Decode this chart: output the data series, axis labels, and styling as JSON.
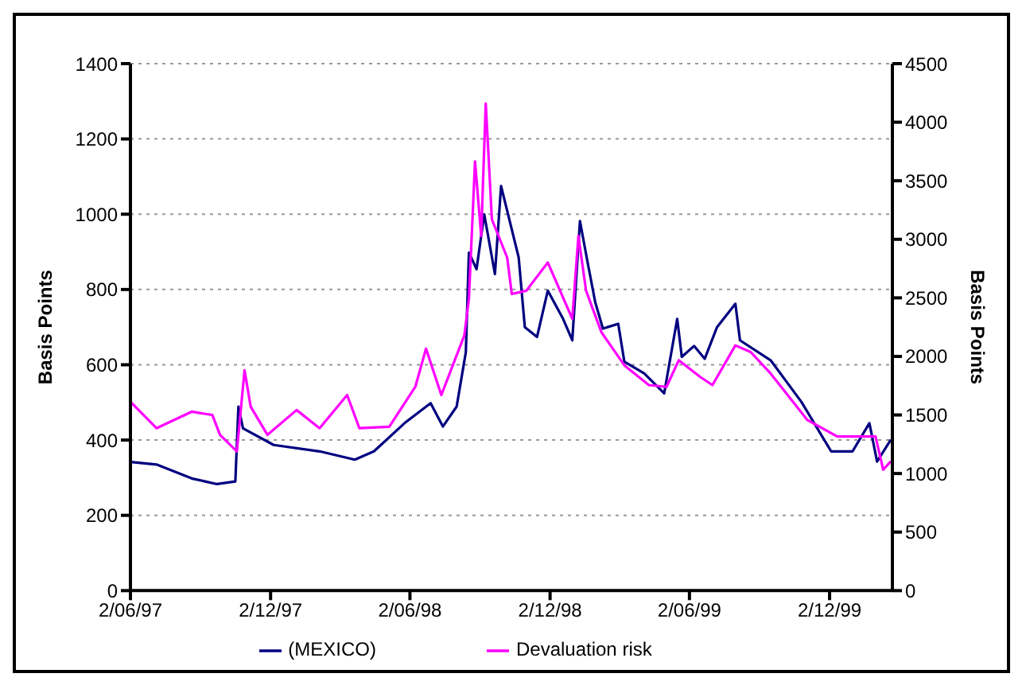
{
  "chart_data": {
    "type": "line",
    "ylabel": "Basis Points",
    "y2label": "Basis Points",
    "xlim": [
      "1997-06-02",
      "2000-02-22"
    ],
    "xticks": [
      {
        "value": "1997-06-02",
        "label": "2/06/97"
      },
      {
        "value": "1997-12-02",
        "label": "2/12/97"
      },
      {
        "value": "1998-06-02",
        "label": "2/06/98"
      },
      {
        "value": "1998-12-02",
        "label": "2/12/98"
      },
      {
        "value": "1999-06-02",
        "label": "2/06/99"
      },
      {
        "value": "1999-12-02",
        "label": "2/12/99"
      }
    ],
    "ylim": [
      0,
      1400
    ],
    "yticks": [
      0,
      200,
      400,
      600,
      800,
      1000,
      1200,
      1400
    ],
    "y2lim": [
      0,
      4500
    ],
    "y2ticks": [
      0,
      500,
      1000,
      1500,
      2000,
      2500,
      3000,
      3500,
      4000,
      4500
    ],
    "grid": "y",
    "legend": "bottom",
    "marker": "none",
    "line_style": "solid",
    "series": [
      {
        "name": "(MEXICO)",
        "color": "#000080",
        "x": [
          "1997-06-02",
          "1997-07-06",
          "1997-08-21",
          "1997-09-23",
          "1997-10-17",
          "1997-10-21",
          "1997-10-27",
          "1997-12-06",
          "1998-02-04",
          "1998-03-22",
          "1998-04-16",
          "1998-05-26",
          "1998-06-29",
          "1998-07-15",
          "1998-08-02",
          "1998-08-14",
          "1998-08-18",
          "1998-08-28",
          "1998-09-07",
          "1998-09-21",
          "1998-09-29",
          "1998-10-22",
          "1998-10-30",
          "1998-11-15",
          "1998-11-29",
          "1998-12-19",
          "1998-12-31",
          "1999-01-10",
          "1999-01-20",
          "1999-01-30",
          "1999-02-09",
          "1999-03-01",
          "1999-03-09",
          "1999-04-04",
          "1999-04-30",
          "1999-05-17",
          "1999-05-23",
          "1999-06-08",
          "1999-06-22",
          "1999-07-08",
          "1999-08-01",
          "1999-08-07",
          "1999-09-16",
          "1999-10-26",
          "1999-12-04",
          "2000-01-01",
          "2000-01-23",
          "2000-02-02",
          "2000-02-20"
        ],
        "values": [
          342,
          335,
          298,
          283,
          290,
          489,
          431,
          387,
          370,
          348,
          370,
          445,
          498,
          436,
          489,
          634,
          898,
          854,
          1000,
          841,
          1075,
          885,
          700,
          674,
          797,
          722,
          665,
          982,
          872,
          766,
          696,
          709,
          608,
          577,
          524,
          722,
          621,
          650,
          616,
          700,
          762,
          665,
          612,
          502,
          370,
          370,
          445,
          343,
          401
        ]
      },
      {
        "name": "Devaluation risk",
        "color": "#ff00ff",
        "axis": "y2",
        "x": [
          "1997-06-02",
          "1997-07-06",
          "1997-08-21",
          "1997-09-17",
          "1997-09-27",
          "1997-10-19",
          "1997-10-29",
          "1997-11-06",
          "1997-11-28",
          "1998-01-05",
          "1998-02-04",
          "1998-03-12",
          "1998-03-28",
          "1998-05-06",
          "1998-06-09",
          "1998-06-23",
          "1998-07-13",
          "1998-08-12",
          "1998-08-18",
          "1998-08-26",
          "1998-09-03",
          "1998-09-09",
          "1998-09-17",
          "1998-10-07",
          "1998-10-13",
          "1998-11-01",
          "1998-11-29",
          "1998-12-31",
          "1999-01-08",
          "1999-01-18",
          "1999-02-07",
          "1999-03-09",
          "1999-04-10",
          "1999-05-03",
          "1999-05-19",
          "1999-06-16",
          "1999-07-02",
          "1999-08-01",
          "1999-08-21",
          "1999-09-16",
          "1999-11-03",
          "1999-12-12",
          "2000-01-31",
          "2000-02-10",
          "2000-02-20"
        ],
        "values": [
          1613,
          1387,
          1528,
          1500,
          1330,
          1189,
          1882,
          1571,
          1330,
          1542,
          1387,
          1670,
          1387,
          1400,
          1740,
          2066,
          1670,
          2179,
          2490,
          3665,
          3028,
          4160,
          3170,
          2844,
          2533,
          2561,
          2802,
          2321,
          3028,
          2561,
          2207,
          1924,
          1755,
          1740,
          1967,
          1825,
          1755,
          2094,
          2037,
          1854,
          1457,
          1316,
          1316,
          1033,
          1104
        ]
      }
    ]
  }
}
